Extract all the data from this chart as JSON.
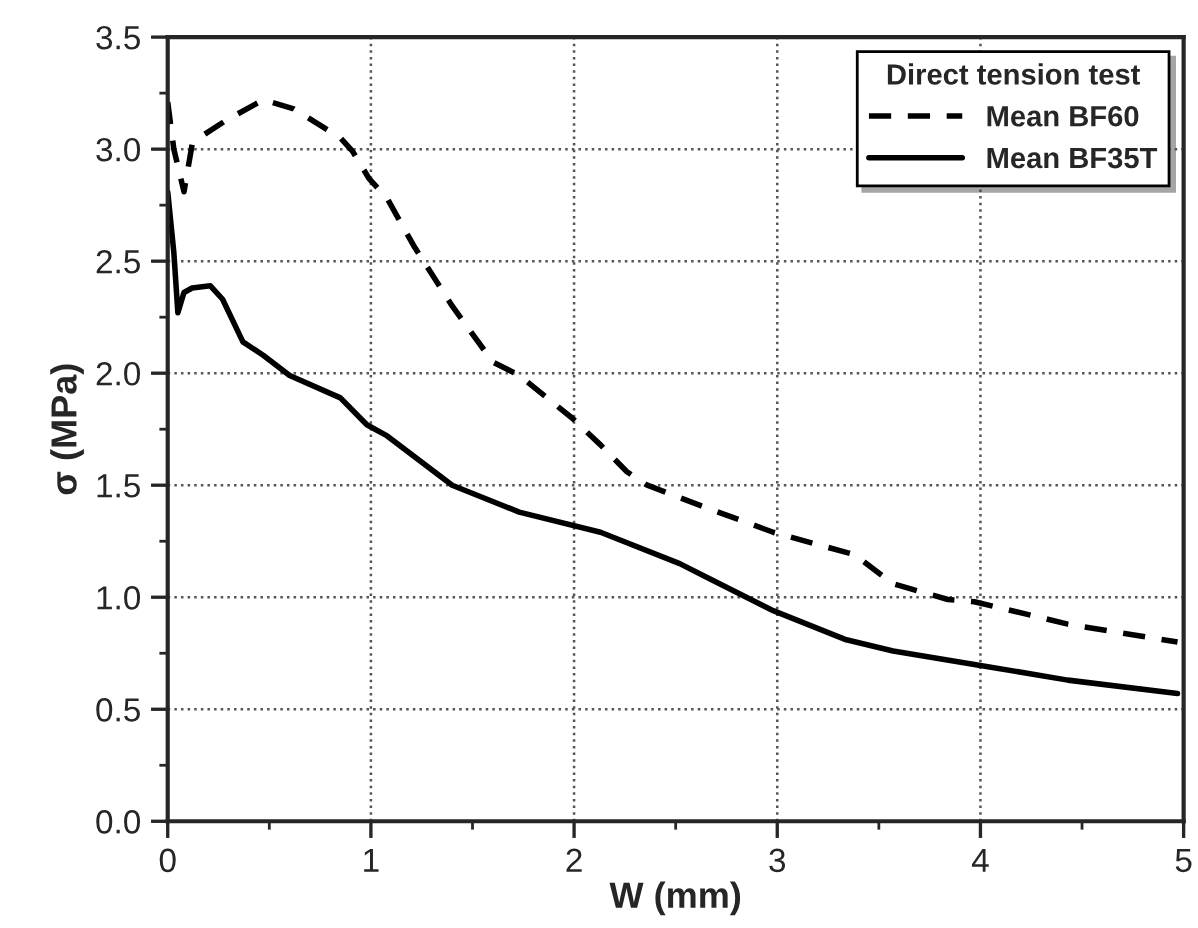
{
  "chart_data": {
    "type": "line",
    "xlabel": "W (mm)",
    "ylabel": "σ (MPa)",
    "legend_title": "Direct tension test",
    "xlim": [
      0,
      5
    ],
    "ylim": [
      0,
      3.5
    ],
    "xticks": [
      0,
      1,
      2,
      3,
      4,
      5
    ],
    "yticks": [
      {
        "value": 0,
        "label": "0.0"
      },
      {
        "value": 0.5,
        "label": "0.5"
      },
      {
        "value": 1,
        "label": "1.0"
      },
      {
        "value": 1.5,
        "label": "1.5"
      },
      {
        "value": 2,
        "label": "2.0"
      },
      {
        "value": 2.5,
        "label": "2.5"
      },
      {
        "value": 3,
        "label": "3.0"
      },
      {
        "value": 3.5,
        "label": "3.5"
      }
    ],
    "grid": true,
    "legend": "top right",
    "marker": "none",
    "series": [
      {
        "name": "Mean BF60",
        "color": "#000000",
        "line_style": "dashed",
        "x": [
          0,
          0.03,
          0.08,
          0.12,
          0.17,
          0.29,
          0.47,
          0.62,
          0.85,
          0.91,
          0.99,
          1.08,
          1.21,
          1.4,
          1.6,
          1.73,
          1.99,
          2.13,
          2.26,
          2.36,
          2.62,
          2.98,
          3.38,
          3.57,
          3.84,
          3.97,
          4.43,
          4.97
        ],
        "values": [
          3.21,
          3.0,
          2.81,
          3.02,
          3.06,
          3.13,
          3.22,
          3.18,
          3.05,
          2.99,
          2.87,
          2.78,
          2.57,
          2.3,
          2.05,
          1.99,
          1.8,
          1.68,
          1.56,
          1.5,
          1.41,
          1.29,
          1.19,
          1.06,
          0.99,
          0.98,
          0.88,
          0.8
        ]
      },
      {
        "name": "Mean BF35T",
        "color": "#000000",
        "line_style": "solid",
        "x": [
          0,
          0.03,
          0.05,
          0.08,
          0.12,
          0.21,
          0.27,
          0.37,
          0.47,
          0.6,
          0.85,
          0.98,
          1.08,
          1.4,
          1.73,
          2.13,
          2.52,
          2.65,
          2.98,
          3.34,
          3.57,
          3.97,
          4.43,
          4.97
        ],
        "values": [
          2.81,
          2.54,
          2.27,
          2.36,
          2.38,
          2.39,
          2.33,
          2.14,
          2.08,
          1.99,
          1.89,
          1.77,
          1.72,
          1.5,
          1.38,
          1.29,
          1.15,
          1.09,
          0.94,
          0.81,
          0.76,
          0.7,
          0.63,
          0.57
        ]
      }
    ]
  }
}
